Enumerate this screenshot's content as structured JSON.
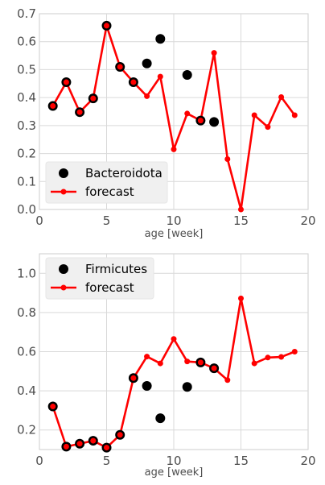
{
  "chart_data": [
    {
      "type": "scatter",
      "xlabel": "age [week]",
      "ylabel": "",
      "xlim": [
        0,
        20
      ],
      "ylim": [
        0.0,
        0.7
      ],
      "xticks": [
        0,
        5,
        10,
        15,
        20
      ],
      "yticks": [
        0.0,
        0.1,
        0.2,
        0.3,
        0.4,
        0.5,
        0.6,
        0.7
      ],
      "ytick_decimals": 1,
      "grid": true,
      "legend": "lower-left",
      "series": [
        {
          "name": "Bacteroidota",
          "kind": "observed",
          "color": "#000000",
          "x": [
            1,
            2,
            3,
            4,
            5,
            6,
            7,
            8,
            9,
            11,
            12,
            13
          ],
          "y": [
            0.37,
            0.455,
            0.348,
            0.397,
            0.657,
            0.51,
            0.455,
            0.522,
            0.61,
            0.481,
            0.318,
            0.313
          ]
        },
        {
          "name": "forecast",
          "kind": "forecast",
          "color": "#ff0000",
          "x": [
            1,
            2,
            3,
            4,
            5,
            6,
            7,
            8,
            9,
            10,
            11,
            12,
            13,
            14,
            15,
            16,
            17,
            18,
            19
          ],
          "y": [
            0.37,
            0.455,
            0.348,
            0.397,
            0.657,
            0.51,
            0.455,
            0.405,
            0.475,
            0.215,
            0.343,
            0.318,
            0.56,
            0.18,
            0.0,
            0.337,
            0.295,
            0.402,
            0.337
          ]
        }
      ]
    },
    {
      "type": "scatter",
      "xlabel": "age [week]",
      "ylabel": "",
      "xlim": [
        0,
        20
      ],
      "ylim": [
        0.1,
        1.1
      ],
      "xticks": [
        0,
        5,
        10,
        15,
        20
      ],
      "yticks": [
        0.2,
        0.4,
        0.6,
        0.8,
        1.0
      ],
      "ytick_decimals": 1,
      "grid": true,
      "legend": "upper-left",
      "series": [
        {
          "name": "Firmicutes",
          "kind": "observed",
          "color": "#000000",
          "x": [
            1,
            2,
            3,
            4,
            5,
            6,
            7,
            8,
            9,
            11,
            12,
            13
          ],
          "y": [
            0.32,
            0.115,
            0.13,
            0.145,
            0.11,
            0.175,
            0.465,
            0.425,
            0.26,
            0.42,
            0.545,
            0.515
          ]
        },
        {
          "name": "forecast",
          "kind": "forecast",
          "color": "#ff0000",
          "x": [
            1,
            2,
            3,
            4,
            5,
            6,
            7,
            8,
            9,
            10,
            11,
            12,
            13,
            14,
            15,
            16,
            17,
            18,
            19
          ],
          "y": [
            0.32,
            0.115,
            0.13,
            0.145,
            0.11,
            0.175,
            0.465,
            0.575,
            0.54,
            0.665,
            0.55,
            0.545,
            0.515,
            0.455,
            0.872,
            0.54,
            0.57,
            0.573,
            0.6
          ]
        }
      ]
    }
  ]
}
